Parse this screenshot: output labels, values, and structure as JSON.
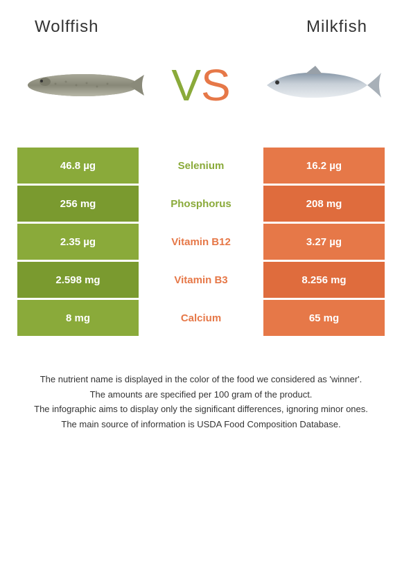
{
  "left_name": "Wolffish",
  "right_name": "Milkfish",
  "vs_v": "V",
  "vs_s": "S",
  "colors": {
    "left": "#8aaa3a",
    "right": "#e67848",
    "left_alt": "#7a9a2f",
    "right_alt": "#df6c3d"
  },
  "rows": [
    {
      "left_val": "46.8 µg",
      "label": "Selenium",
      "right_val": "16.2 µg",
      "winner": "left"
    },
    {
      "left_val": "256 mg",
      "label": "Phosphorus",
      "right_val": "208 mg",
      "winner": "left"
    },
    {
      "left_val": "2.35 µg",
      "label": "Vitamin B12",
      "right_val": "3.27 µg",
      "winner": "right"
    },
    {
      "left_val": "2.598 mg",
      "label": "Vitamin B3",
      "right_val": "8.256 mg",
      "winner": "right"
    },
    {
      "left_val": "8 mg",
      "label": "Calcium",
      "right_val": "65 mg",
      "winner": "right"
    }
  ],
  "footer": {
    "line1": "The nutrient name is displayed in the color of the food we considered as 'winner'.",
    "line2": "The amounts are specified per 100 gram of the product.",
    "line3": "The infographic aims to display only the significant differences, ignoring minor ones.",
    "line4": "The main source of information is USDA Food Composition Database."
  }
}
